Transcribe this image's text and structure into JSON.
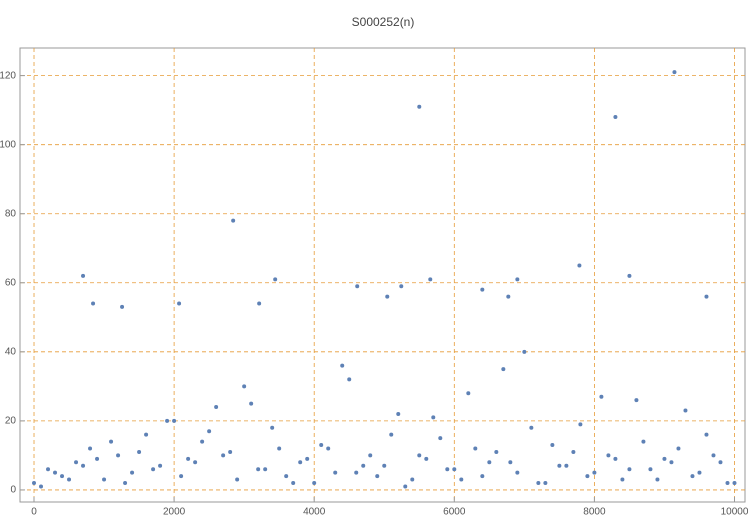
{
  "chart_data": {
    "type": "scatter",
    "title": "S000252(n)",
    "x": [
      0,
      200,
      400,
      600,
      800,
      1000,
      1200,
      1400,
      1600,
      1800,
      2000,
      2200,
      2400,
      2600,
      2800,
      3000,
      3200,
      3400,
      3600,
      3800,
      4000,
      4200,
      4400,
      4600,
      4800,
      5000,
      5200,
      5400,
      5600,
      5800,
      6000,
      6200,
      6400,
      6600,
      6800,
      7000,
      7200,
      7400,
      7600,
      7800,
      8000,
      8200,
      8400,
      8600,
      8800,
      9000,
      9200,
      9400,
      9600,
      9800,
      10000,
      100,
      300,
      500,
      700,
      900,
      1100,
      1300,
      1500,
      1700,
      1900,
      2100,
      2300,
      2500,
      2700,
      2900,
      3100,
      3300,
      3500,
      3700,
      3900,
      4100,
      4300,
      4500,
      4700,
      4900,
      5100,
      5300,
      5500,
      5700,
      5900,
      6100,
      6300,
      6500,
      6700,
      6900,
      7100,
      7300,
      7500,
      7700,
      7900,
      8100,
      8300,
      8500,
      8700,
      8900,
      9100,
      9300,
      9500,
      9700,
      9900,
      9143,
      8300,
      5500,
      2843,
      700,
      3443,
      7786,
      5657,
      8500,
      6900,
      5243,
      4614,
      9600,
      6771,
      843,
      2071,
      3214,
      5043,
      1257,
      6400
    ],
    "values": [
      2,
      6,
      4,
      8,
      12,
      3,
      10,
      5,
      16,
      7,
      20,
      9,
      14,
      24,
      11,
      30,
      6,
      18,
      4,
      8,
      2,
      12,
      36,
      5,
      10,
      7,
      22,
      3,
      9,
      15,
      6,
      28,
      4,
      11,
      8,
      40,
      2,
      13,
      7,
      19,
      5,
      10,
      3,
      26,
      6,
      9,
      12,
      4,
      16,
      8,
      2,
      1,
      5,
      3,
      7,
      9,
      14,
      2,
      11,
      6,
      20,
      4,
      8,
      17,
      10,
      3,
      25,
      6,
      12,
      2,
      9,
      13,
      5,
      32,
      7,
      4,
      16,
      1,
      10,
      21,
      6,
      3,
      12,
      8,
      35,
      5,
      18,
      2,
      7,
      11,
      4,
      27,
      9,
      6,
      14,
      3,
      8,
      23,
      5,
      10,
      2,
      121,
      108,
      111,
      78,
      62,
      61,
      65,
      61,
      62,
      61,
      59,
      59,
      56,
      56,
      54,
      54,
      54,
      56,
      53,
      58
    ],
    "color": "#5e81b5",
    "xlim": [
      -200,
      10150
    ],
    "ylim": [
      -3.5,
      128
    ],
    "xticks": [
      0,
      2000,
      4000,
      6000,
      8000,
      10000
    ],
    "yticks": [
      0,
      20,
      40,
      60,
      80,
      100,
      120
    ],
    "grid": true,
    "grid_color": "#e69b37"
  }
}
